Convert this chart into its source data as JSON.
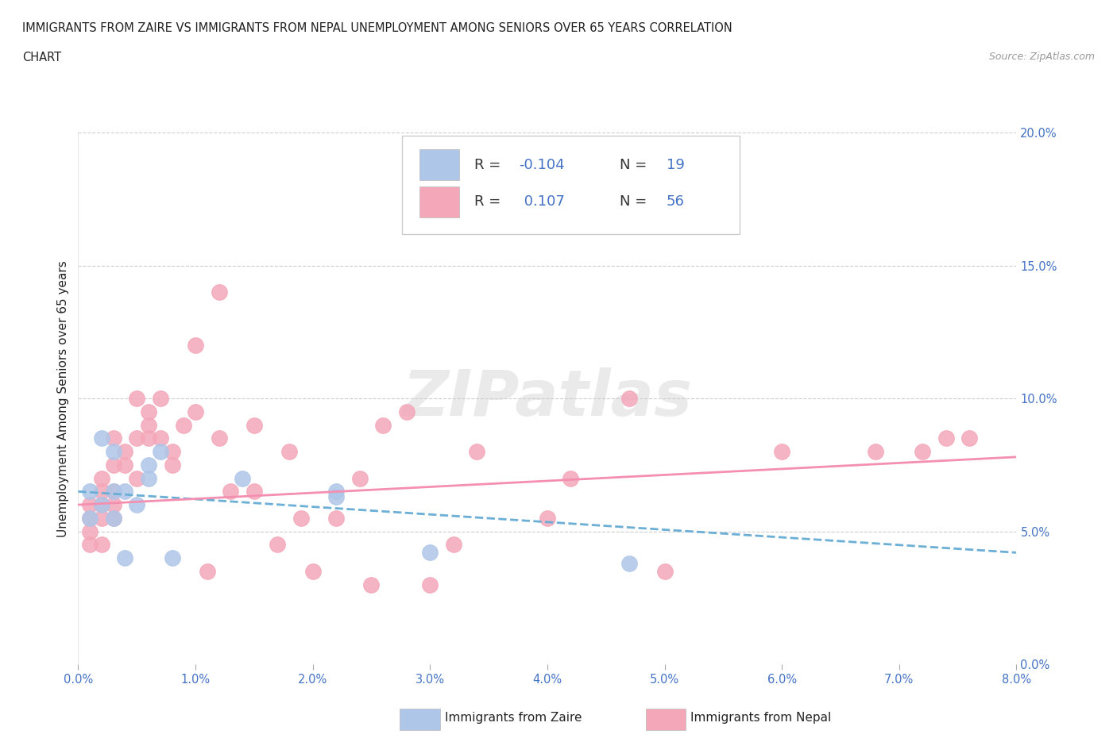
{
  "title_line1": "IMMIGRANTS FROM ZAIRE VS IMMIGRANTS FROM NEPAL UNEMPLOYMENT AMONG SENIORS OVER 65 YEARS CORRELATION",
  "title_line2": "CHART",
  "source_text": "Source: ZipAtlas.com",
  "ylabel": "Unemployment Among Seniors over 65 years",
  "xlim": [
    0.0,
    0.08
  ],
  "ylim": [
    0.0,
    0.2
  ],
  "xticks": [
    0.0,
    0.01,
    0.02,
    0.03,
    0.04,
    0.05,
    0.06,
    0.07,
    0.08
  ],
  "xtick_labels": [
    "0.0%",
    "1.0%",
    "2.0%",
    "3.0%",
    "4.0%",
    "5.0%",
    "6.0%",
    "7.0%",
    "8.0%"
  ],
  "yticks": [
    0.0,
    0.05,
    0.1,
    0.15,
    0.2
  ],
  "ytick_labels": [
    "0.0%",
    "5.0%",
    "10.0%",
    "15.0%",
    "20.0%"
  ],
  "zaire_color": "#aec6e8",
  "nepal_color": "#f4a7b9",
  "zaire_line_color": "#6baed6",
  "nepal_line_color": "#f48fb1",
  "zaire_R": "-0.104",
  "zaire_N": "19",
  "nepal_R": "0.107",
  "nepal_N": "56",
  "zaire_scatter_x": [
    0.001,
    0.001,
    0.002,
    0.002,
    0.003,
    0.003,
    0.003,
    0.004,
    0.004,
    0.005,
    0.006,
    0.006,
    0.007,
    0.008,
    0.014,
    0.022,
    0.022,
    0.03,
    0.047
  ],
  "zaire_scatter_y": [
    0.055,
    0.065,
    0.06,
    0.085,
    0.055,
    0.065,
    0.08,
    0.04,
    0.065,
    0.06,
    0.07,
    0.075,
    0.08,
    0.04,
    0.07,
    0.063,
    0.065,
    0.042,
    0.038
  ],
  "nepal_scatter_x": [
    0.001,
    0.001,
    0.001,
    0.001,
    0.002,
    0.002,
    0.002,
    0.002,
    0.002,
    0.003,
    0.003,
    0.003,
    0.003,
    0.003,
    0.004,
    0.004,
    0.005,
    0.005,
    0.005,
    0.006,
    0.006,
    0.006,
    0.007,
    0.007,
    0.008,
    0.008,
    0.009,
    0.01,
    0.01,
    0.011,
    0.012,
    0.012,
    0.013,
    0.015,
    0.015,
    0.017,
    0.018,
    0.019,
    0.02,
    0.022,
    0.024,
    0.025,
    0.026,
    0.028,
    0.03,
    0.032,
    0.034,
    0.04,
    0.042,
    0.047,
    0.05,
    0.06,
    0.068,
    0.072,
    0.074,
    0.076
  ],
  "nepal_scatter_y": [
    0.06,
    0.055,
    0.05,
    0.045,
    0.065,
    0.06,
    0.055,
    0.07,
    0.045,
    0.085,
    0.075,
    0.065,
    0.06,
    0.055,
    0.08,
    0.075,
    0.1,
    0.085,
    0.07,
    0.095,
    0.09,
    0.085,
    0.1,
    0.085,
    0.08,
    0.075,
    0.09,
    0.12,
    0.095,
    0.035,
    0.14,
    0.085,
    0.065,
    0.09,
    0.065,
    0.045,
    0.08,
    0.055,
    0.035,
    0.055,
    0.07,
    0.03,
    0.09,
    0.095,
    0.03,
    0.045,
    0.08,
    0.055,
    0.07,
    0.1,
    0.035,
    0.08,
    0.08,
    0.08,
    0.085,
    0.085
  ],
  "zaire_trend_x": [
    0.0,
    0.08
  ],
  "zaire_trend_y": [
    0.065,
    0.042
  ],
  "nepal_trend_x": [
    0.0,
    0.08
  ],
  "nepal_trend_y": [
    0.06,
    0.078
  ],
  "background_color": "#ffffff",
  "grid_color": "#cccccc",
  "axis_color": "#4472c4",
  "text_color": "#222222",
  "legend_label_zaire": "Immigrants from Zaire",
  "legend_label_nepal": "Immigrants from Nepal",
  "watermark": "ZIPatlas"
}
